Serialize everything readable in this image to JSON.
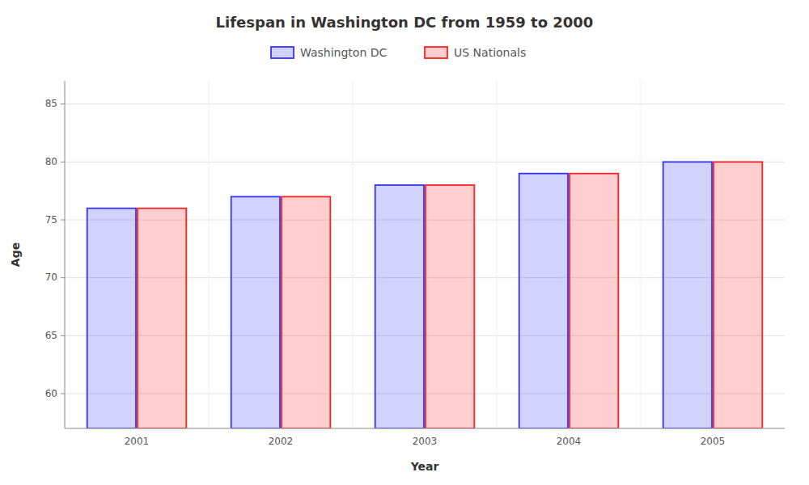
{
  "chart_data": {
    "type": "bar",
    "title": "Lifespan in Washington DC from 1959 to 2000",
    "xlabel": "Year",
    "ylabel": "Age",
    "categories": [
      "2001",
      "2002",
      "2003",
      "2004",
      "2005"
    ],
    "series": [
      {
        "name": "Washington DC",
        "color": "#3333ff",
        "values": [
          76,
          77,
          78,
          79,
          80
        ]
      },
      {
        "name": "US Nationals",
        "color": "#ff2222",
        "values": [
          76,
          77,
          78,
          79,
          80
        ]
      }
    ],
    "ylim": [
      57,
      87
    ],
    "yticks": [
      60,
      65,
      70,
      75,
      80,
      85
    ],
    "grid": true,
    "legend": "top"
  }
}
